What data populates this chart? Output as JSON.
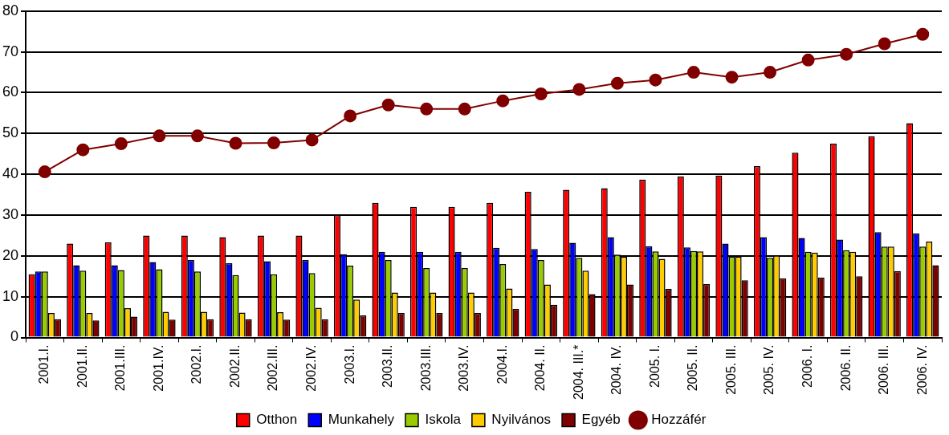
{
  "chart_data": {
    "type": "bar",
    "categories": [
      "2001.I.",
      "2001.II.",
      "2001.III.",
      "2001.IV.",
      "2002.I.",
      "2002.II.",
      "2002.III.",
      "2002.IV.",
      "2003.I.",
      "2003.II.",
      "2003.III.",
      "2003.IV.",
      "2004.I.",
      "2004. II.",
      "2004. III.*",
      "2004. IV.",
      "2005. I.",
      "2005. II.",
      "2005. III.",
      "2005. IV.",
      "2006. I.",
      "2006. II.",
      "2006. III.",
      "2006. IV."
    ],
    "series": [
      {
        "name": "Otthon",
        "color": "#ff0000",
        "values": [
          15.5,
          23,
          23.3,
          25,
          25,
          24.6,
          25,
          25,
          30,
          33,
          32,
          32,
          33,
          35.7,
          36.2,
          36.6,
          38.7,
          39.5,
          39.7,
          42,
          45.3,
          47.5,
          49.3,
          52.5
        ]
      },
      {
        "name": "Munkahely",
        "color": "#0000ff",
        "values": [
          16.2,
          17.7,
          17.7,
          18.5,
          19,
          18.2,
          18.7,
          19,
          20.4,
          21,
          21,
          21,
          22,
          21.7,
          23.2,
          24.6,
          22.4,
          22.1,
          23,
          24.6,
          24.4,
          24,
          25.8,
          25.5
        ]
      },
      {
        "name": "Iskola",
        "color": "#99cc00",
        "values": [
          16.2,
          16.4,
          16.5,
          16.7,
          16.2,
          15.3,
          15.5,
          15.8,
          17.6,
          19,
          17,
          17,
          18,
          19,
          19.5,
          20.3,
          21.1,
          21.2,
          19.8,
          19.5,
          21,
          21.4,
          22.3,
          22.3
        ]
      },
      {
        "name": "Nyilvános",
        "color": "#ffcc00",
        "values": [
          6,
          6,
          7.2,
          6.3,
          6.3,
          6.1,
          6.2,
          7.3,
          9.3,
          11,
          11,
          11,
          12,
          13,
          16.4,
          19.8,
          19.3,
          21.1,
          19.8,
          20.1,
          20.8,
          21,
          22.3,
          23.5
        ]
      },
      {
        "name": "Egyéb",
        "color": "#800000",
        "values": [
          4.5,
          4.2,
          5.1,
          4.4,
          4.5,
          4.5,
          4.4,
          4.5,
          5.4,
          6,
          6,
          6,
          7,
          8,
          10.6,
          13,
          11.9,
          13.1,
          14,
          14.5,
          14.7,
          15,
          16.3,
          17.7
        ]
      },
      {
        "name": "Hozzáfér",
        "type": "line",
        "color": "#800000",
        "values": [
          40.6,
          46,
          47.5,
          49.4,
          49.4,
          47.6,
          47.7,
          48.4,
          54.3,
          57,
          56,
          56,
          58,
          59.7,
          60.8,
          62.3,
          63.1,
          65,
          63.8,
          65,
          68,
          69.4,
          72,
          74.3
        ]
      }
    ],
    "ylim": [
      0,
      80
    ],
    "yticks": [
      0,
      10,
      20,
      30,
      40,
      50,
      60,
      70,
      80
    ],
    "grid": "y",
    "legend": "bottom",
    "marker": "circle"
  }
}
